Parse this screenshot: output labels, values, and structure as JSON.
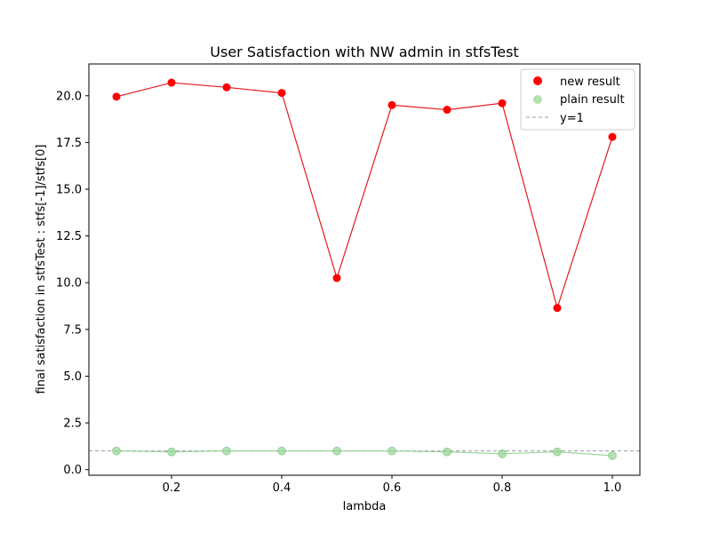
{
  "chart_data": {
    "type": "line",
    "title": "User Satisfaction with NW admin in stfsTest",
    "xlabel": "lambda",
    "ylabel": "final satisfaction in stfsTest : stfs[-1]/stfs[0]",
    "xlim": [
      0.05,
      1.05
    ],
    "ylim": [
      -0.3,
      21.7
    ],
    "x_ticks": [
      0.2,
      0.4,
      0.6,
      0.8,
      1.0
    ],
    "x_tick_labels": [
      "0.2",
      "0.4",
      "0.6",
      "0.8",
      "1.0"
    ],
    "y_ticks": [
      0.0,
      2.5,
      5.0,
      7.5,
      10.0,
      12.5,
      15.0,
      17.5,
      20.0
    ],
    "y_tick_labels": [
      "0.0",
      "2.5",
      "5.0",
      "7.5",
      "10.0",
      "12.5",
      "15.0",
      "17.5",
      "20.0"
    ],
    "x": [
      0.1,
      0.2,
      0.3,
      0.4,
      0.5,
      0.6,
      0.7,
      0.8,
      0.9,
      1.0
    ],
    "series": [
      {
        "name": "new result",
        "color": "#ff0000",
        "line_color": "#e31a1c",
        "values": [
          19.95,
          20.7,
          20.45,
          20.15,
          10.25,
          19.5,
          19.25,
          19.6,
          8.65,
          17.8
        ]
      },
      {
        "name": "plain result",
        "color": "#98d898",
        "line_color": "#90d090",
        "values": [
          1.0,
          0.95,
          1.0,
          1.0,
          1.0,
          1.0,
          0.95,
          0.85,
          0.95,
          0.75
        ]
      }
    ],
    "reference_line": {
      "name": "y=1",
      "y": 1,
      "color": "#999999"
    },
    "legend_position": "top-right",
    "grid": false
  }
}
